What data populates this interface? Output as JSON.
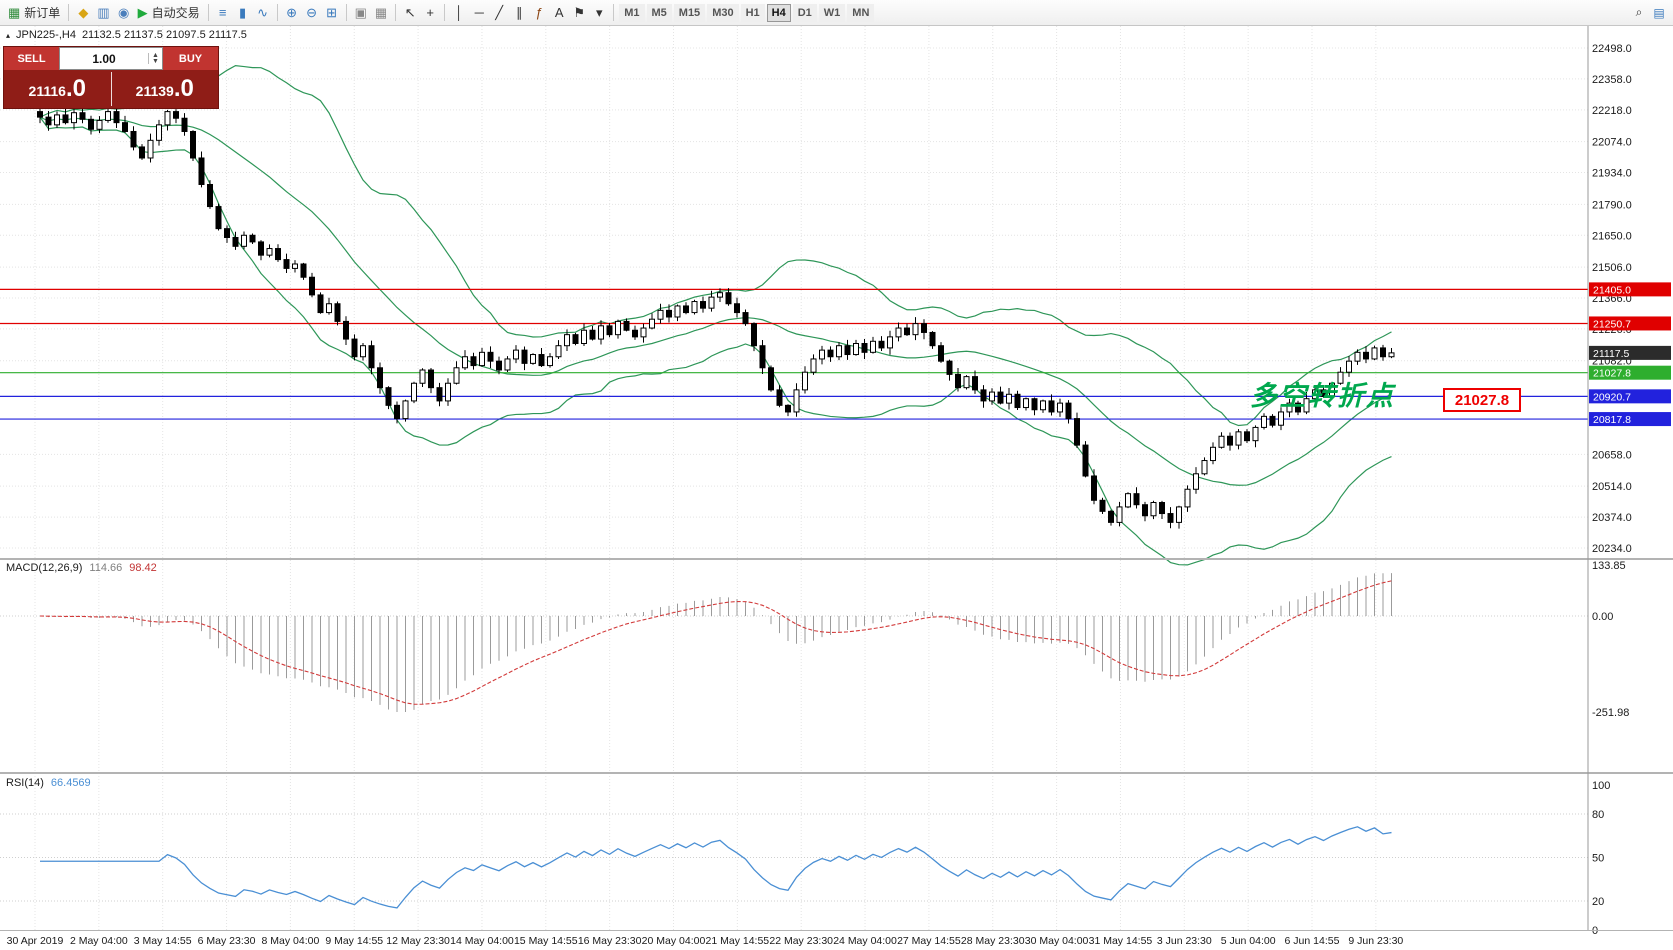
{
  "toolbar": {
    "groups": [
      {
        "items": [
          {
            "name": "new-order-button",
            "glyph": "▦",
            "glyph_color": "#2e8b3a",
            "label": "新订单"
          }
        ]
      },
      {
        "items": [
          {
            "name": "marketwatch-button",
            "glyph": "◆",
            "glyph_color": "#d9a514"
          },
          {
            "name": "data-window-button",
            "glyph": "▥",
            "glyph_color": "#4a7ebb"
          },
          {
            "name": "navigator-button",
            "glyph": "◉",
            "glyph_color": "#4a7ebb"
          },
          {
            "name": "autotrade-button",
            "glyph": "▶",
            "glyph_color": "#1faa3c",
            "label": "自动交易"
          }
        ]
      },
      {
        "items": [
          {
            "name": "bar-chart-button",
            "glyph": "≡",
            "glyph_color": "#3a7abd"
          },
          {
            "name": "candlestick-chart-button",
            "glyph": "▮",
            "glyph_color": "#3a7abd"
          },
          {
            "name": "line-chart-button",
            "glyph": "∿",
            "glyph_color": "#3a7abd"
          }
        ]
      },
      {
        "items": [
          {
            "name": "zoom-in-button",
            "glyph": "⊕",
            "glyph_color": "#3a7abd"
          },
          {
            "name": "zoom-out-button",
            "glyph": "⊖",
            "glyph_color": "#3a7abd"
          },
          {
            "name": "tile-windows-button",
            "glyph": "⊞",
            "glyph_color": "#3a7abd"
          }
        ]
      },
      {
        "items": [
          {
            "name": "cascade-windows-button",
            "glyph": "▣",
            "glyph_color": "#888888"
          },
          {
            "name": "arrange-windows-button",
            "glyph": "▦",
            "glyph_color": "#888888"
          }
        ]
      },
      {
        "items": [
          {
            "name": "cursor-button",
            "glyph": "↖",
            "glyph_color": "#333333"
          },
          {
            "name": "crosshair-button",
            "glyph": "+",
            "glyph_color": "#333333"
          }
        ]
      },
      {
        "items": [
          {
            "name": "vertical-line-button",
            "glyph": "│",
            "glyph_color": "#333333"
          },
          {
            "name": "horizontal-line-button",
            "glyph": "─",
            "glyph_color": "#333333"
          },
          {
            "name": "trendline-button",
            "glyph": "╱",
            "glyph_color": "#333333"
          },
          {
            "name": "channel-button",
            "glyph": "∥",
            "glyph_color": "#333333"
          },
          {
            "name": "fibonacci-button",
            "glyph": "ƒ",
            "glyph_color": "#8b4513"
          },
          {
            "name": "text-button",
            "glyph": "A",
            "glyph_color": "#333333"
          },
          {
            "name": "label-button",
            "glyph": "⚑",
            "glyph_color": "#333333"
          },
          {
            "name": "shapes-dropdown-button",
            "glyph": "▾",
            "glyph_color": "#333333"
          }
        ]
      }
    ],
    "timeframes": [
      "M1",
      "M5",
      "M15",
      "M30",
      "H1",
      "H4",
      "D1",
      "W1",
      "MN"
    ],
    "active_timeframe": "H4",
    "right_items": [
      {
        "name": "search-button",
        "glyph": "⌕",
        "glyph_color": "#333333"
      },
      {
        "name": "new-chart-button",
        "glyph": "▤",
        "glyph_color": "#3a7abd"
      }
    ]
  },
  "symbol_info": {
    "marker": "▴",
    "name": "JPN225-,H4",
    "ohlc": "21132.5 21137.5 21097.5 21117.5"
  },
  "trade_panel": {
    "sell_label": "SELL",
    "buy_label": "BUY",
    "volume": "1.00",
    "sell_price_main": "21116",
    "sell_price_dec": ".0",
    "buy_price_main": "21139",
    "buy_price_dec": ".0"
  },
  "annotations": {
    "text": "多空转折点",
    "price_label": "21027.8"
  },
  "chart_data": {
    "type": "candlestick",
    "symbol": "JPN225-",
    "timeframe": "H4",
    "current_price": 21117.5,
    "price_axis": {
      "min": 20234.0,
      "max": 22498.0,
      "ticks": [
        22498.0,
        22358.0,
        22218.0,
        22074.0,
        21934.0,
        21790.0,
        21650.0,
        21506.0,
        21366.0,
        21226.0,
        21082.0,
        20658.0,
        20514.0,
        20374.0,
        20234.0
      ]
    },
    "time_axis": {
      "labels": [
        "30 Apr 2019",
        "2 May 04:00",
        "3 May 14:55",
        "6 May 23:30",
        "8 May 04:00",
        "9 May 14:55",
        "12 May 23:30",
        "14 May 04:00",
        "15 May 14:55",
        "16 May 23:30",
        "20 May 04:00",
        "21 May 14:55",
        "22 May 23:30",
        "24 May 04:00",
        "27 May 14:55",
        "28 May 23:30",
        "30 May 04:00",
        "31 May 14:55",
        "3 Jun 23:30",
        "5 Jun 04:00",
        "6 Jun 14:55",
        "9 Jun 23:30"
      ]
    },
    "hlines": [
      {
        "price": 21405.0,
        "color": "#e00000",
        "label": "21405.0"
      },
      {
        "price": 21250.7,
        "color": "#e00000",
        "label": "21250.7"
      },
      {
        "price": 21027.8,
        "color": "#2eae2e",
        "label": "21027.8"
      },
      {
        "price": 20920.7,
        "color": "#2222dd",
        "label": "20920.7"
      },
      {
        "price": 20817.8,
        "color": "#2222dd",
        "label": "20817.8"
      }
    ],
    "candles": {
      "closes": [
        22185,
        22150,
        22195,
        22160,
        22205,
        22175,
        22130,
        22170,
        22210,
        22160,
        22120,
        22050,
        22000,
        22080,
        22150,
        22210,
        22180,
        22120,
        22000,
        21880,
        21780,
        21680,
        21640,
        21600,
        21650,
        21620,
        21560,
        21590,
        21540,
        21500,
        21520,
        21460,
        21380,
        21300,
        21340,
        21260,
        21180,
        21100,
        21150,
        21050,
        20960,
        20880,
        20820,
        20900,
        20980,
        21040,
        20960,
        20900,
        20980,
        21050,
        21100,
        21060,
        21120,
        21080,
        21040,
        21090,
        21130,
        21070,
        21110,
        21060,
        21100,
        21150,
        21200,
        21160,
        21220,
        21180,
        21240,
        21200,
        21260,
        21220,
        21190,
        21230,
        21270,
        21310,
        21280,
        21330,
        21300,
        21350,
        21320,
        21370,
        21390,
        21340,
        21300,
        21250,
        21150,
        21050,
        20950,
        20880,
        20850,
        20950,
        21030,
        21090,
        21130,
        21100,
        21150,
        21110,
        21160,
        21120,
        21170,
        21140,
        21190,
        21230,
        21200,
        21250,
        21210,
        21150,
        21080,
        21020,
        20960,
        21010,
        20950,
        20900,
        20940,
        20890,
        20930,
        20870,
        20910,
        20860,
        20900,
        20850,
        20890,
        20820,
        20700,
        20560,
        20450,
        20400,
        20350,
        20420,
        20480,
        20430,
        20380,
        20440,
        20390,
        20350,
        20420,
        20500,
        20570,
        20630,
        20690,
        20740,
        20700,
        20760,
        20720,
        20780,
        20830,
        20790,
        20850,
        20890,
        20850,
        20910,
        20950,
        20920,
        20980,
        21030,
        21080,
        21120,
        21090,
        21140,
        21100,
        21117.5
      ]
    },
    "indicators": {
      "bollinger": {
        "period": 20,
        "deviation": 2,
        "color": "#2e9658"
      },
      "macd": {
        "label": "MACD(12,26,9)",
        "value_main": "114.66",
        "value_signal": "98.42",
        "scale_labels": [
          {
            "v": 133.85,
            "t": "133.85"
          },
          {
            "v": 0,
            "t": "0.00"
          },
          {
            "v": -251.98,
            "t": "-251.98"
          }
        ]
      },
      "rsi": {
        "label": "RSI(14)",
        "value": "66.4569",
        "levels": [
          80,
          50,
          20
        ],
        "scale_labels": [
          100,
          80,
          50,
          20,
          0
        ]
      }
    }
  }
}
